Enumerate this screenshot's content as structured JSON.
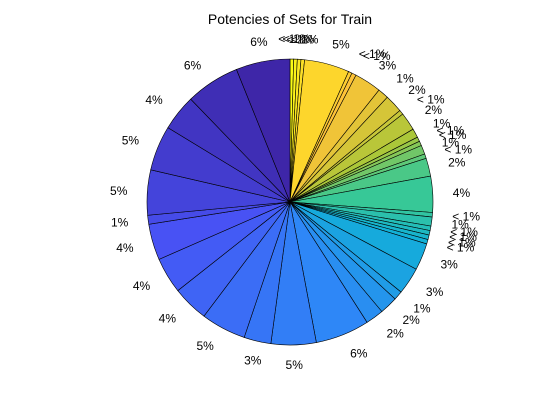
{
  "chart_data": {
    "type": "pie",
    "title": "Potencies of Sets for Train",
    "start_angle_deg": 90,
    "direction": "clockwise",
    "colormap": "parula",
    "percent_labels": [
      "< 1%",
      "< 1%",
      "< 1%",
      "< 1%",
      "5%",
      "< 1%",
      "< 1%",
      "3%",
      "1%",
      "2%",
      "< 1%",
      "2%",
      "1%",
      "< 1%",
      "< 1%",
      "1%",
      "< 1%",
      "2%",
      "4%",
      "< 1%",
      "1%",
      "< 1%",
      "< 1%",
      "< 1%",
      "< 1%",
      "3%",
      "3%",
      "1%",
      "2%",
      "2%",
      "6%",
      "5%",
      "3%",
      "5%",
      "4%",
      "4%",
      "4%",
      "1%",
      "5%",
      "5%",
      "4%",
      "6%",
      "6%"
    ],
    "values": [
      0.4,
      0.4,
      0.4,
      0.4,
      5,
      0.4,
      0.5,
      3,
      1.2,
      2,
      0.5,
      2,
      1,
      0.5,
      0.5,
      1,
      0.5,
      2,
      4,
      0.5,
      1,
      0.5,
      0.5,
      0.5,
      0.5,
      3,
      3,
      1,
      2,
      2,
      6,
      5,
      3,
      5,
      4,
      4,
      4,
      1,
      5,
      5,
      4,
      6,
      6
    ]
  }
}
